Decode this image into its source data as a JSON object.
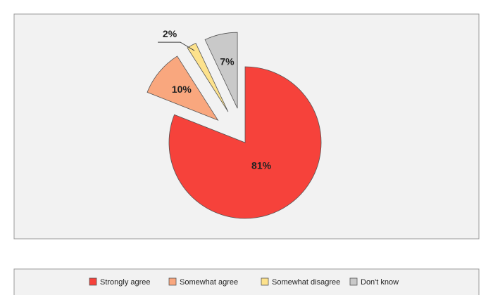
{
  "chart_data": {
    "type": "pie",
    "categories": [
      "Strongly agree",
      "Somewhat agree",
      "Somewhat disagree",
      "Don't know"
    ],
    "values": [
      81,
      10,
      2,
      7
    ],
    "value_labels": [
      "81%",
      "10%",
      "2%",
      "7%"
    ],
    "colors": [
      "#f6423b",
      "#f9a77e",
      "#fde28c",
      "#c9c9c9"
    ],
    "legend": "bottom"
  }
}
